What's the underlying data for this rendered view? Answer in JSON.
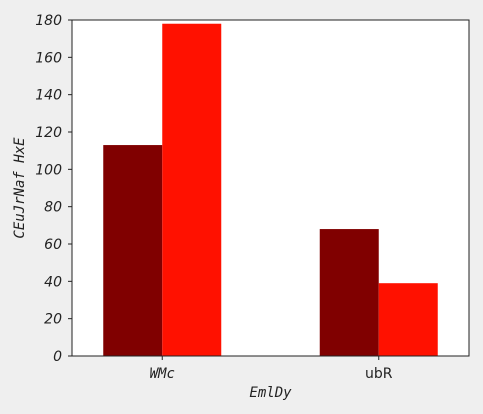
{
  "chart_data": {
    "type": "bar",
    "categories": [
      "WMc",
      "ubR"
    ],
    "series": [
      {
        "values": [
          113,
          68
        ],
        "color": "#800000"
      },
      {
        "values": [
          178,
          39
        ],
        "color": "#ff1100"
      }
    ],
    "xlabel": "EmlDy",
    "ylabel": "CEuJrNaf HxE",
    "ylim": [
      0,
      180
    ],
    "yticks": [
      0,
      20,
      40,
      60,
      80,
      100,
      120,
      140,
      160,
      180
    ],
    "grid": false,
    "legend": "none",
    "background": "#efefef",
    "plot_background": "#ffffff"
  }
}
